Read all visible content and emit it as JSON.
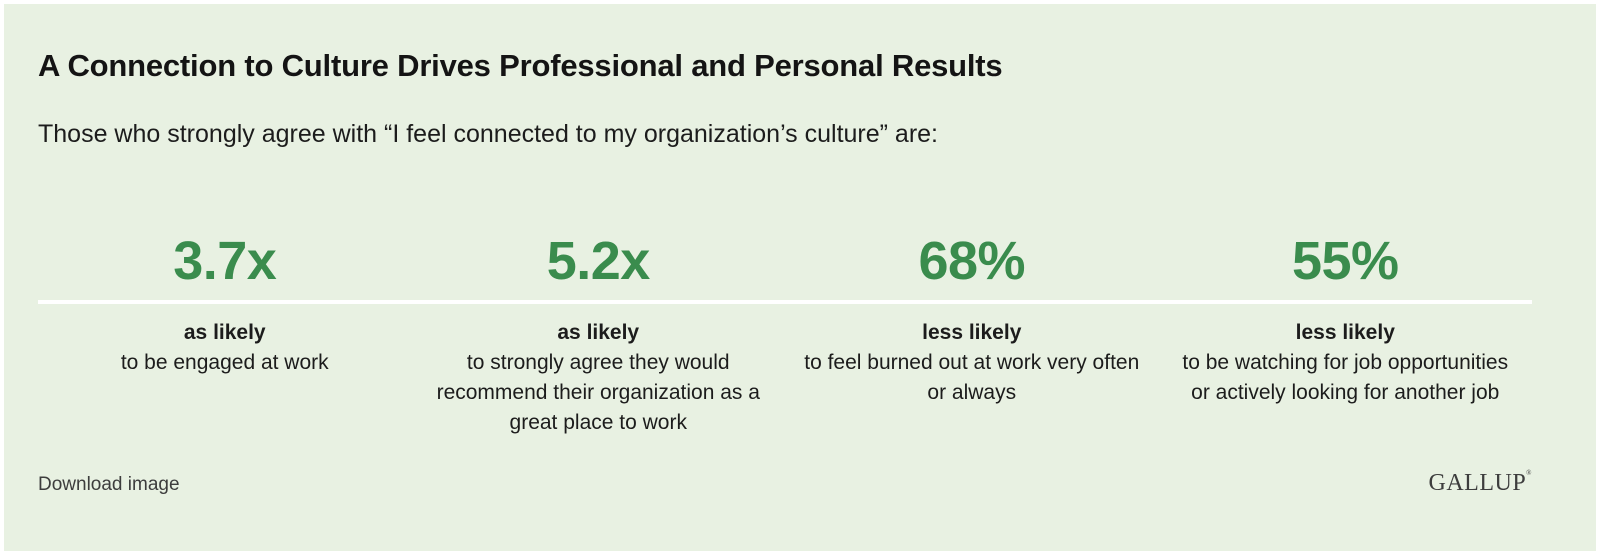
{
  "title": "A Connection to Culture Drives Professional and Personal Results",
  "subtitle": "Those who strongly agree with “I feel connected to my organization’s culture” are:",
  "colors": {
    "background": "#e8f1e2",
    "accent": "#3a8c4d",
    "divider": "#ffffff"
  },
  "chart_data": {
    "type": "table",
    "title": "A Connection to Culture Drives Professional and Personal Results",
    "subtitle": "Those who strongly agree with “I feel connected to my organization’s culture” are:",
    "stats": [
      {
        "value": "3.7x",
        "heading": "as likely",
        "description": "to be engaged at work"
      },
      {
        "value": "5.2x",
        "heading": "as likely",
        "description": "to strongly agree they would recommend their organization as a great place to work"
      },
      {
        "value": "68%",
        "heading": "less likely",
        "description": "to feel burned out at work very often or always"
      },
      {
        "value": "55%",
        "heading": "less likely",
        "description": "to be watching for job opportunities or actively looking for another job"
      }
    ]
  },
  "footer": {
    "download_label": "Download image",
    "logo_text": "GALLUP",
    "logo_mark": "®"
  }
}
